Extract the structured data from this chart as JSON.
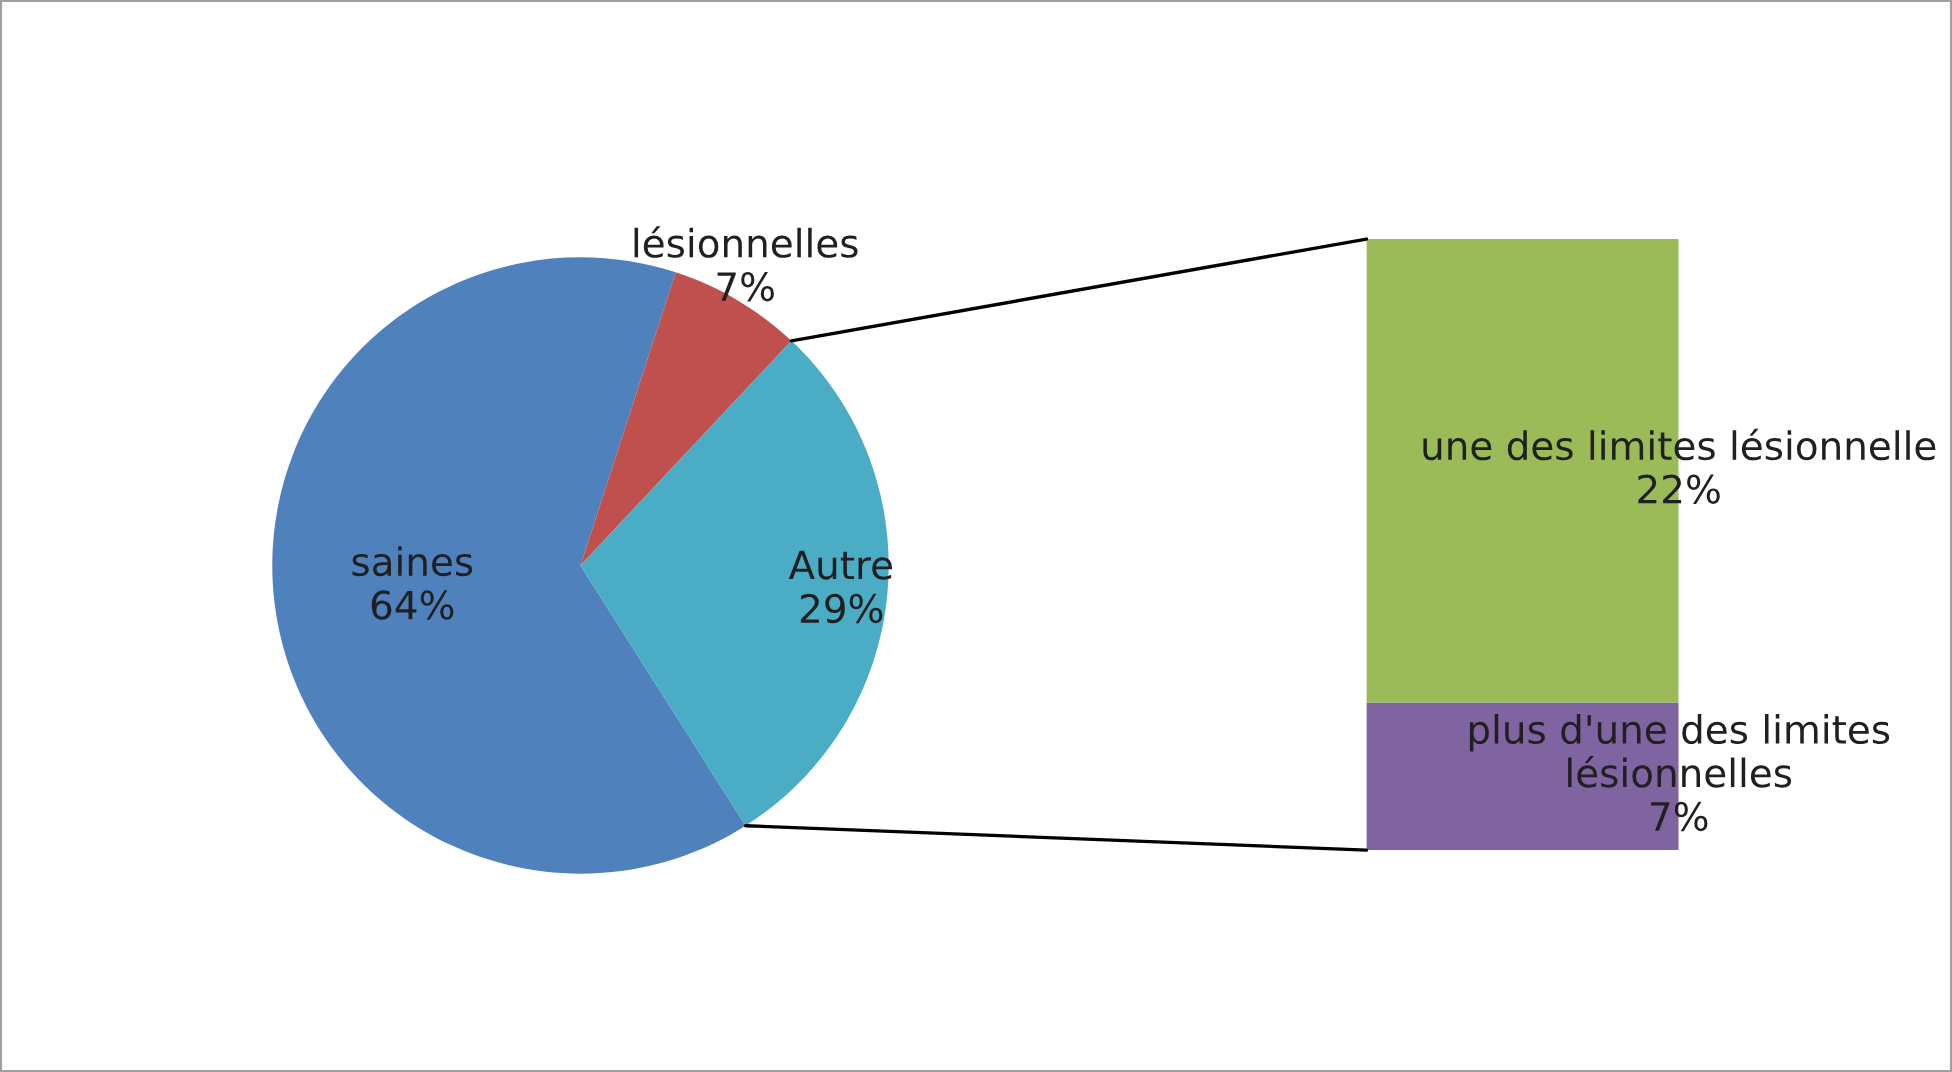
{
  "chart_data": [
    {
      "type": "pie",
      "categories": [
        "saines",
        "lésionnelles",
        "Autre"
      ],
      "values": [
        64,
        7,
        29
      ],
      "colors": [
        "#4f81bd",
        "#c0504d",
        "#4bacc6"
      ],
      "value_labels": [
        "64%",
        "7%",
        "29%"
      ]
    },
    {
      "type": "bar",
      "stacked": true,
      "categories": [
        null
      ],
      "series": [
        {
          "name": "plus d'une des limites lésionnelles",
          "color": "#8064a2",
          "values": [
            7
          ],
          "value_labels": [
            "7%"
          ]
        },
        {
          "name": "une des limites lésionnelle",
          "color": "#9bbb59",
          "values": [
            22
          ],
          "value_labels": [
            "22%"
          ]
        }
      ]
    }
  ]
}
